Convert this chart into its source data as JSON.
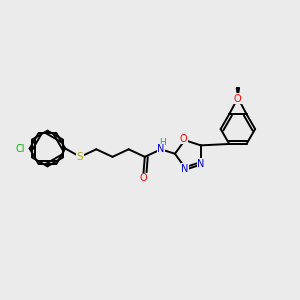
{
  "background_color": "#ebebeb",
  "bond_color": "#000000",
  "atom_colors": {
    "C": "#000000",
    "N": "#0000cc",
    "O": "#ff0000",
    "S": "#aaaa00",
    "Cl": "#00bb00",
    "H": "#00aaaa"
  },
  "figsize": [
    3.0,
    3.0
  ],
  "dpi": 100,
  "lw": 1.4,
  "fs": 7.0
}
